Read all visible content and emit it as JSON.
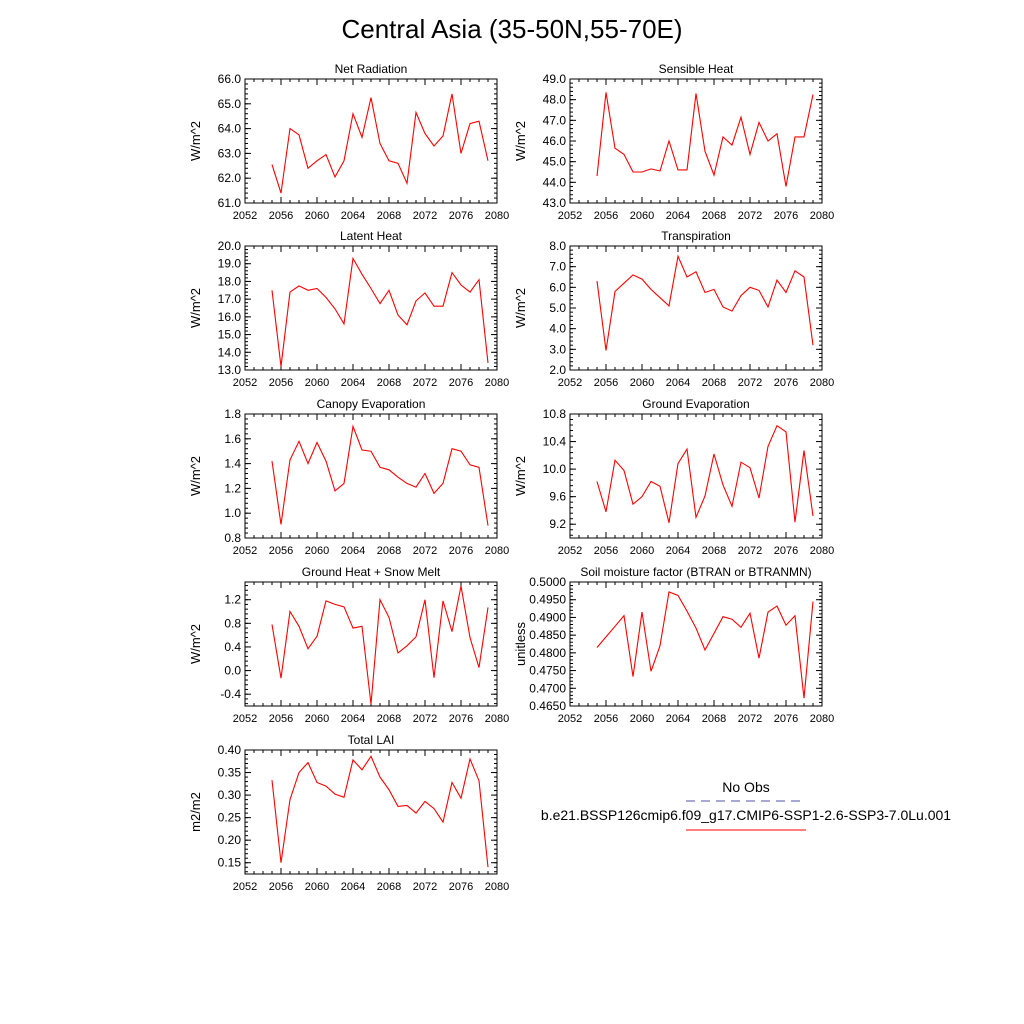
{
  "figure": {
    "title": "Central Asia (35-50N,55-70E)",
    "line_color": "#ff0000",
    "obs_color": "#5050aa"
  },
  "legend": {
    "obs_label": "No Obs",
    "model_label": "b.e21.BSSP126cmip6.f09_g17.CMIP6-SSP1-2.6-SSP3-7.0Lu.001"
  },
  "chart_data": [
    {
      "type": "line",
      "title": "Net Radiation",
      "ylabel": "W/m^2",
      "xlim": [
        2052,
        2080
      ],
      "ylim": [
        61.0,
        66.0
      ],
      "xticks": [
        2052,
        2056,
        2060,
        2064,
        2068,
        2072,
        2076,
        2080
      ],
      "yticks": [
        "61.0",
        "62.0",
        "63.0",
        "64.0",
        "65.0",
        "66.0"
      ],
      "x": [
        2055,
        2056,
        2057,
        2058,
        2059,
        2060,
        2061,
        2062,
        2063,
        2064,
        2065,
        2066,
        2067,
        2068,
        2069,
        2070,
        2071,
        2072,
        2073,
        2074,
        2075,
        2076,
        2077,
        2078,
        2079
      ],
      "values": [
        62.55,
        61.4,
        64.0,
        63.75,
        62.4,
        62.7,
        62.95,
        62.05,
        62.7,
        64.6,
        63.65,
        65.25,
        63.4,
        62.7,
        62.6,
        61.8,
        64.65,
        63.8,
        63.3,
        63.7,
        65.4,
        63.0,
        64.2,
        64.3,
        62.7
      ]
    },
    {
      "type": "line",
      "title": "Sensible Heat",
      "ylabel": "W/m^2",
      "xlim": [
        2052,
        2080
      ],
      "ylim": [
        43.0,
        49.0
      ],
      "xticks": [
        2052,
        2056,
        2060,
        2064,
        2068,
        2072,
        2076,
        2080
      ],
      "yticks": [
        "43.0",
        "44.0",
        "45.0",
        "46.0",
        "47.0",
        "48.0",
        "49.0"
      ],
      "x": [
        2055,
        2056,
        2057,
        2058,
        2059,
        2060,
        2061,
        2062,
        2063,
        2064,
        2065,
        2066,
        2067,
        2068,
        2069,
        2070,
        2071,
        2072,
        2073,
        2074,
        2075,
        2076,
        2077,
        2078,
        2079
      ],
      "values": [
        44.3,
        48.35,
        45.65,
        45.35,
        44.5,
        44.5,
        44.65,
        44.55,
        46.0,
        44.6,
        44.6,
        48.3,
        45.5,
        44.35,
        46.2,
        45.8,
        47.15,
        45.35,
        46.9,
        46.0,
        46.35,
        43.8,
        46.2,
        46.2,
        48.25
      ]
    },
    {
      "type": "line",
      "title": "Latent Heat",
      "ylabel": "W/m^2",
      "xlim": [
        2052,
        2080
      ],
      "ylim": [
        13.0,
        20.0
      ],
      "xticks": [
        2052,
        2056,
        2060,
        2064,
        2068,
        2072,
        2076,
        2080
      ],
      "yticks": [
        "13.0",
        "14.0",
        "15.0",
        "16.0",
        "17.0",
        "18.0",
        "19.0",
        "20.0"
      ],
      "x": [
        2055,
        2056,
        2057,
        2058,
        2059,
        2060,
        2061,
        2062,
        2063,
        2064,
        2065,
        2066,
        2067,
        2068,
        2069,
        2070,
        2071,
        2072,
        2073,
        2074,
        2075,
        2076,
        2077,
        2078,
        2079
      ],
      "values": [
        17.5,
        13.2,
        17.4,
        17.75,
        17.5,
        17.6,
        17.1,
        16.45,
        15.6,
        19.3,
        18.4,
        17.6,
        16.75,
        17.5,
        16.1,
        15.55,
        16.9,
        17.35,
        16.6,
        16.6,
        18.5,
        17.8,
        17.4,
        18.1,
        13.4
      ]
    },
    {
      "type": "line",
      "title": "Transpiration",
      "ylabel": "W/m^2",
      "xlim": [
        2052,
        2080
      ],
      "ylim": [
        2.0,
        8.0
      ],
      "xticks": [
        2052,
        2056,
        2060,
        2064,
        2068,
        2072,
        2076,
        2080
      ],
      "yticks": [
        "2.0",
        "3.0",
        "4.0",
        "5.0",
        "6.0",
        "7.0",
        "8.0"
      ],
      "x": [
        2055,
        2056,
        2057,
        2058,
        2059,
        2060,
        2061,
        2062,
        2063,
        2064,
        2065,
        2066,
        2067,
        2068,
        2069,
        2070,
        2071,
        2072,
        2073,
        2074,
        2075,
        2076,
        2077,
        2078,
        2079
      ],
      "values": [
        6.3,
        2.95,
        5.8,
        6.2,
        6.6,
        6.4,
        5.9,
        5.5,
        5.1,
        7.5,
        6.5,
        6.75,
        5.75,
        5.9,
        5.05,
        4.85,
        5.6,
        6.0,
        5.85,
        5.05,
        6.35,
        5.75,
        6.8,
        6.5,
        3.2
      ]
    },
    {
      "type": "line",
      "title": "Canopy Evaporation",
      "ylabel": "W/m^2",
      "xlim": [
        2052,
        2080
      ],
      "ylim": [
        0.8,
        1.8
      ],
      "xticks": [
        2052,
        2056,
        2060,
        2064,
        2068,
        2072,
        2076,
        2080
      ],
      "yticks": [
        "0.8",
        "1.0",
        "1.2",
        "1.4",
        "1.6",
        "1.8"
      ],
      "x": [
        2055,
        2056,
        2057,
        2058,
        2059,
        2060,
        2061,
        2062,
        2063,
        2064,
        2065,
        2066,
        2067,
        2068,
        2069,
        2070,
        2071,
        2072,
        2073,
        2074,
        2075,
        2076,
        2077,
        2078,
        2079
      ],
      "values": [
        1.42,
        0.91,
        1.43,
        1.58,
        1.4,
        1.57,
        1.42,
        1.18,
        1.24,
        1.7,
        1.51,
        1.5,
        1.37,
        1.35,
        1.29,
        1.24,
        1.21,
        1.32,
        1.16,
        1.24,
        1.52,
        1.5,
        1.39,
        1.37,
        0.9
      ]
    },
    {
      "type": "line",
      "title": "Ground Evaporation",
      "ylabel": "W/m^2",
      "xlim": [
        2052,
        2080
      ],
      "ylim": [
        9.0,
        10.8
      ],
      "xticks": [
        2052,
        2056,
        2060,
        2064,
        2068,
        2072,
        2076,
        2080
      ],
      "yticks": [
        "9.2",
        "9.6",
        "10.0",
        "10.4",
        "10.8"
      ],
      "ytick_values": [
        9.2,
        9.6,
        10.0,
        10.4,
        10.8
      ],
      "x": [
        2055,
        2056,
        2057,
        2058,
        2059,
        2060,
        2061,
        2062,
        2063,
        2064,
        2065,
        2066,
        2067,
        2068,
        2069,
        2070,
        2071,
        2072,
        2073,
        2074,
        2075,
        2076,
        2077,
        2078,
        2079
      ],
      "values": [
        9.82,
        9.38,
        10.13,
        9.98,
        9.49,
        9.6,
        9.82,
        9.75,
        9.22,
        10.08,
        10.29,
        9.3,
        9.61,
        10.22,
        9.77,
        9.46,
        10.1,
        10.02,
        9.58,
        10.33,
        10.63,
        10.54,
        9.23,
        10.27,
        9.32
      ]
    },
    {
      "type": "line",
      "title": "Ground Heat + Snow Melt",
      "ylabel": "W/m^2",
      "xlim": [
        2052,
        2080
      ],
      "ylim": [
        -0.6,
        1.5
      ],
      "xticks": [
        2052,
        2056,
        2060,
        2064,
        2068,
        2072,
        2076,
        2080
      ],
      "yticks": [
        "-0.4",
        "0.0",
        "0.4",
        "0.8",
        "1.2"
      ],
      "ytick_values": [
        -0.4,
        0.0,
        0.4,
        0.8,
        1.2
      ],
      "x": [
        2055,
        2056,
        2057,
        2058,
        2059,
        2060,
        2061,
        2062,
        2063,
        2064,
        2065,
        2066,
        2067,
        2068,
        2069,
        2070,
        2071,
        2072,
        2073,
        2074,
        2075,
        2076,
        2077,
        2078,
        2079
      ],
      "values": [
        0.78,
        -0.13,
        1.0,
        0.75,
        0.37,
        0.58,
        1.18,
        1.12,
        1.08,
        0.72,
        0.75,
        -0.57,
        1.2,
        0.9,
        0.3,
        0.42,
        0.57,
        1.2,
        -0.12,
        1.18,
        0.66,
        1.43,
        0.56,
        0.05,
        1.07
      ]
    },
    {
      "type": "line",
      "title": "Soil moisture factor (BTRAN or BTRANMN)",
      "ylabel": "unitless",
      "xlim": [
        2052,
        2080
      ],
      "ylim": [
        0.465,
        0.5
      ],
      "xticks": [
        2052,
        2056,
        2060,
        2064,
        2068,
        2072,
        2076,
        2080
      ],
      "yticks": [
        "0.4650",
        "0.4700",
        "0.4750",
        "0.4800",
        "0.4850",
        "0.4900",
        "0.4950",
        "0.5000"
      ],
      "x": [
        2055,
        2056,
        2057,
        2058,
        2059,
        2060,
        2061,
        2062,
        2063,
        2064,
        2065,
        2066,
        2067,
        2068,
        2069,
        2070,
        2071,
        2072,
        2073,
        2074,
        2075,
        2076,
        2077,
        2078,
        2079
      ],
      "values": [
        0.4815,
        0.4845,
        0.4875,
        0.4905,
        0.4733,
        0.4915,
        0.4748,
        0.482,
        0.4972,
        0.4962,
        0.4918,
        0.487,
        0.4808,
        0.4855,
        0.4902,
        0.4895,
        0.4872,
        0.4912,
        0.4785,
        0.4915,
        0.4932,
        0.4878,
        0.4905,
        0.4672,
        0.4945
      ]
    },
    {
      "type": "line",
      "title": "Total LAI",
      "ylabel": "m2/m2",
      "xlim": [
        2052,
        2080
      ],
      "ylim": [
        0.125,
        0.4
      ],
      "xticks": [
        2052,
        2056,
        2060,
        2064,
        2068,
        2072,
        2076,
        2080
      ],
      "yticks": [
        "0.15",
        "0.20",
        "0.25",
        "0.30",
        "0.35",
        "0.40"
      ],
      "ytick_values": [
        0.15,
        0.2,
        0.25,
        0.3,
        0.35,
        0.4
      ],
      "x": [
        2055,
        2056,
        2057,
        2058,
        2059,
        2060,
        2061,
        2062,
        2063,
        2064,
        2065,
        2066,
        2067,
        2068,
        2069,
        2070,
        2071,
        2072,
        2073,
        2074,
        2075,
        2076,
        2077,
        2078,
        2079
      ],
      "values": [
        0.333,
        0.15,
        0.29,
        0.35,
        0.372,
        0.328,
        0.32,
        0.302,
        0.295,
        0.378,
        0.356,
        0.386,
        0.34,
        0.312,
        0.275,
        0.277,
        0.26,
        0.286,
        0.27,
        0.24,
        0.328,
        0.293,
        0.38,
        0.332,
        0.14
      ]
    }
  ]
}
